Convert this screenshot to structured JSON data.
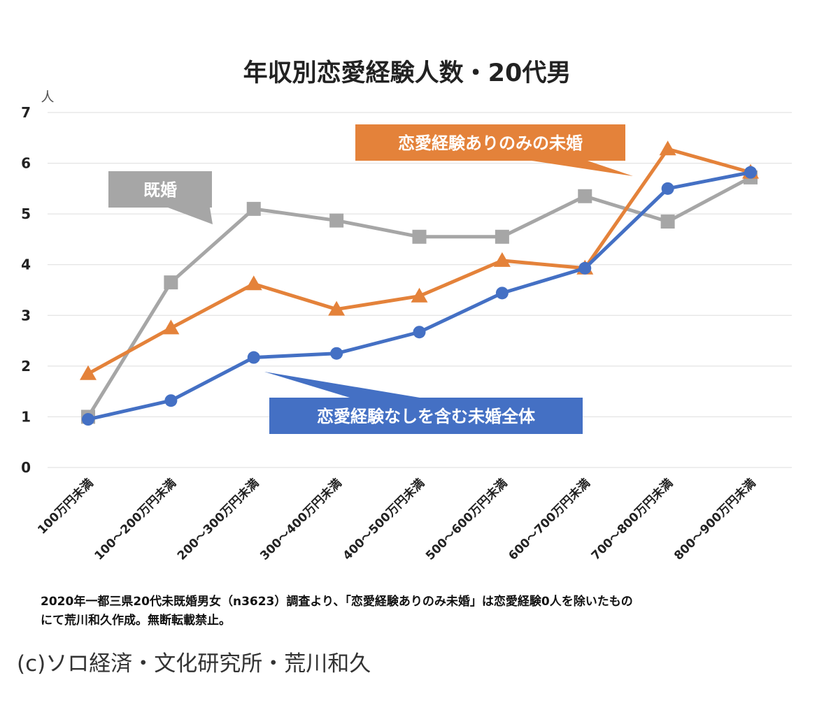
{
  "chart_data": {
    "type": "line",
    "title": "年収別恋愛経験人数・20代男",
    "ylabel": "人",
    "ylim": [
      0,
      7
    ],
    "yticks": [
      "0",
      "1",
      "2",
      "3",
      "4",
      "5",
      "6",
      "7"
    ],
    "grid": true,
    "categories": [
      "100万円未満",
      "100～200万円未満",
      "200～300万円未満",
      "300～400万円未満",
      "400～500万円未満",
      "500～600万円未満",
      "600～700万円未満",
      "700～800万円未満",
      "800～900万円未満"
    ],
    "series": [
      {
        "name": "既婚",
        "color": "#a6a6a6",
        "marker": "square",
        "values": [
          1.0,
          3.65,
          5.1,
          4.87,
          4.55,
          4.55,
          5.35,
          4.85,
          5.72
        ]
      },
      {
        "name": "恋愛経験ありのみの未婚",
        "color": "#e4823a",
        "marker": "triangle",
        "values": [
          1.85,
          2.75,
          3.62,
          3.12,
          3.38,
          4.08,
          3.93,
          6.28,
          5.82
        ]
      },
      {
        "name": "恋愛経験なしを含む未婚全体",
        "color": "#4470c4",
        "marker": "circle",
        "values": [
          0.95,
          1.32,
          2.17,
          2.25,
          2.67,
          3.44,
          3.93,
          5.5,
          5.82
        ]
      }
    ]
  },
  "footnote": {
    "line1": "2020年一都三県20代未既婚男女（n3623）調査より、「恋愛経験ありのみ未婚」は恋愛経験0人を除いたもの",
    "line2": "にて荒川和久作成。無断転載禁止。"
  },
  "credit": "(c)ソロ経済・文化研究所・荒川和久"
}
